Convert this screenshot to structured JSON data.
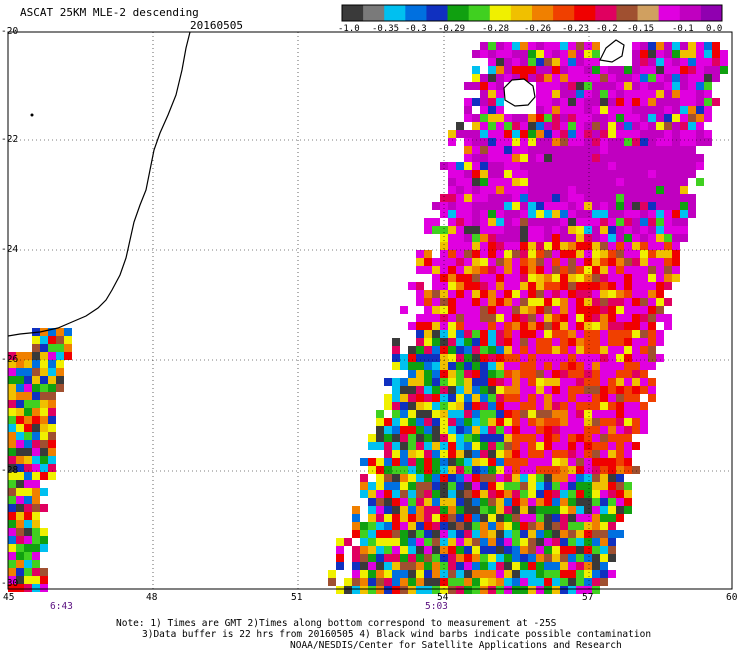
{
  "header": {
    "title": "ASCAT 25KM MLE-2 descending",
    "date": "20160505"
  },
  "colorbar": {
    "colors": [
      "#3a3a3a",
      "#7a7a7a",
      "#00c0f0",
      "#0070e0",
      "#1030c0",
      "#10a010",
      "#40d020",
      "#f0f000",
      "#f0c000",
      "#f08000",
      "#f04000",
      "#f00000",
      "#e00060",
      "#a05030",
      "#d0a060",
      "#e000e0",
      "#c000c0",
      "#9000b0"
    ],
    "labels": [
      "-1.0",
      "-0.35",
      "-0.3",
      "-0.29",
      "-0.28",
      "-0.26",
      "-0.23",
      "-0.2",
      "-0.15",
      "-0.1",
      "0.0"
    ]
  },
  "axes": {
    "lon_ticks": [
      "45",
      "48",
      "51",
      "54",
      "57",
      "60"
    ],
    "lat_ticks": [
      "-20",
      "-22",
      "-24",
      "-26",
      "-28",
      "-30"
    ],
    "pass_times": [
      "6:43",
      "5:03"
    ]
  },
  "notes": {
    "line1": "Note: 1) Times are GMT 2)Times along bottom correspond to measurement at -25S",
    "line2": "3)Data buffer is 22 hrs from 20160505 4) Black wind barbs indicate possible contamination",
    "line3": "NOAA/NESDIS/Center for Satellite Applications and Research"
  }
}
